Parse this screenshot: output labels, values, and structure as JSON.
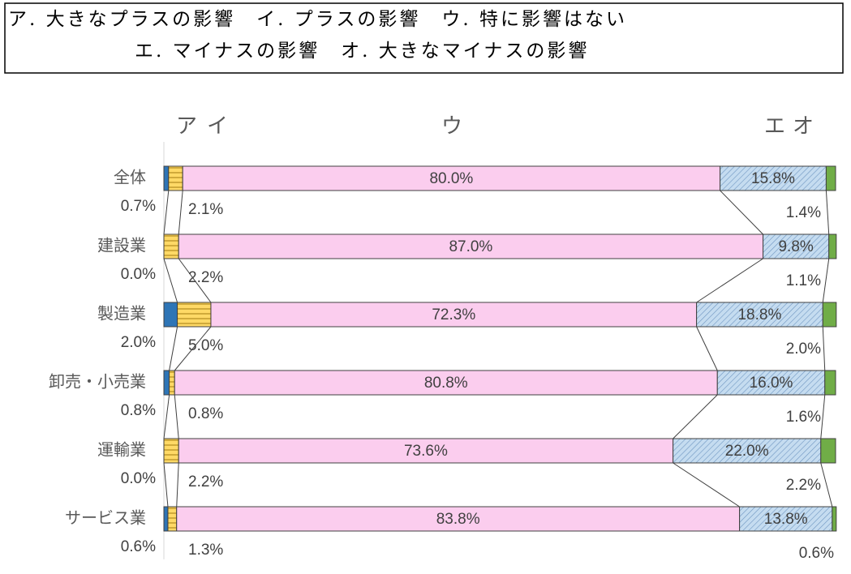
{
  "legend_box": {
    "lines": [
      "ア. 大きなプラスの影響　イ. プラスの影響　ウ. 特に影響はない",
      "エ. マイナスの影響　オ. 大きなマイナスの影響"
    ]
  },
  "chart_data": {
    "type": "stacked_bar_horizontal",
    "categories": [
      "全体",
      "建設業",
      "製造業",
      "卸売・小売業",
      "運輸業",
      "サービス業"
    ],
    "xlim": [
      0,
      100
    ],
    "series": [
      {
        "name": "ア",
        "color": "#2e75b6",
        "values": [
          0.7,
          0.0,
          2.0,
          0.8,
          0.0,
          0.6
        ],
        "value_labels": [
          "0.7%",
          "0.0%",
          "2.0%",
          "0.8%",
          "0.0%",
          "0.6%"
        ]
      },
      {
        "name": "イ",
        "color": "#ffd966",
        "values": [
          2.1,
          2.2,
          5.0,
          0.8,
          2.2,
          1.3
        ],
        "value_labels": [
          "2.1%",
          "2.2%",
          "5.0%",
          "0.8%",
          "2.2%",
          "1.3%"
        ]
      },
      {
        "name": "ウ",
        "color": "#fbcdee",
        "values": [
          80.0,
          87.0,
          72.3,
          80.8,
          73.6,
          83.8
        ],
        "value_labels": [
          "80.0%",
          "87.0%",
          "72.3%",
          "80.8%",
          "73.6%",
          "83.8%"
        ]
      },
      {
        "name": "エ",
        "color": "#c5dcf0",
        "values": [
          15.8,
          9.8,
          18.8,
          16.0,
          22.0,
          13.8
        ],
        "value_labels": [
          "15.8%",
          "9.8%",
          "18.8%",
          "16.0%",
          "22.0%",
          "13.8%"
        ]
      },
      {
        "name": "オ",
        "color": "#70ad47",
        "values": [
          1.4,
          1.1,
          2.0,
          1.6,
          2.2,
          0.6
        ],
        "value_labels": [
          "1.4%",
          "1.1%",
          "2.0%",
          "1.6%",
          "2.2%",
          "0.6%"
        ]
      }
    ]
  }
}
